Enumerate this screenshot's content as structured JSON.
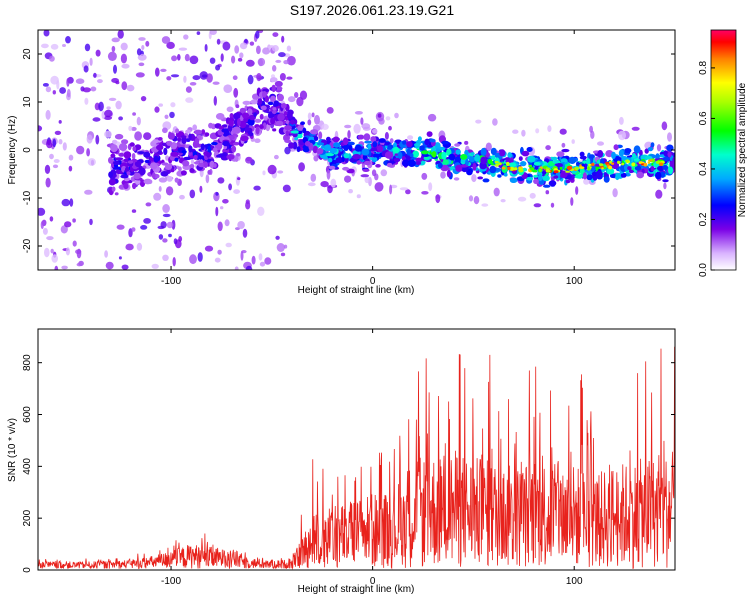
{
  "title": "S197.2026.061.23.19.G21",
  "colors": {
    "snr_line": "#e8221c",
    "axis": "#000000"
  },
  "chart_data": [
    {
      "type": "heatmap",
      "id": "spectrogram",
      "xlabel": "Height of straight line (km)",
      "ylabel": "Frequency (Hz)",
      "xlim": [
        -166,
        150
      ],
      "ylim": [
        -25,
        25
      ],
      "xticks": [
        -100,
        0,
        100
      ],
      "yticks": [
        -20,
        -10,
        0,
        10,
        20
      ],
      "colorbar": {
        "label": "Normalized spectral amplitude",
        "range": [
          0,
          0.95
        ],
        "ticks": [
          0.0,
          0.2,
          0.4,
          0.6,
          0.8
        ],
        "colormap": "rainbow (white→violet→blue→cyan→green→yellow→red→magenta)"
      },
      "ridge_frequency_hz": [
        {
          "x": -120,
          "f": -3.5
        },
        {
          "x": -100,
          "f": -1
        },
        {
          "x": -80,
          "f": 0
        },
        {
          "x": -60,
          "f": 6
        },
        {
          "x": -50,
          "f": 10
        },
        {
          "x": -40,
          "f": 4
        },
        {
          "x": -20,
          "f": -1
        },
        {
          "x": 0,
          "f": -0.5
        },
        {
          "x": 20,
          "f": 0
        },
        {
          "x": 40,
          "f": -2
        },
        {
          "x": 60,
          "f": -3
        },
        {
          "x": 80,
          "f": -4
        },
        {
          "x": 100,
          "f": -4
        },
        {
          "x": 120,
          "f": -3
        },
        {
          "x": 140,
          "f": -2.5
        },
        {
          "x": 150,
          "f": -2.5
        }
      ]
    },
    {
      "type": "line",
      "id": "snr",
      "xlabel": "Height of straight line (km)",
      "ylabel": "SNR (10 * v/v)",
      "xlim": [
        -166,
        150
      ],
      "ylim": [
        0,
        930
      ],
      "xticks": [
        -100,
        0,
        100
      ],
      "yticks": [
        0,
        200,
        400,
        600,
        800
      ],
      "envelope": {
        "x": [
          -166,
          -140,
          -120,
          -110,
          -100,
          -90,
          -80,
          -70,
          -60,
          -50,
          -40,
          -35,
          -30,
          -20,
          -10,
          0,
          10,
          20,
          30,
          40,
          50,
          60,
          70,
          80,
          90,
          100,
          110,
          120,
          130,
          140,
          150
        ],
        "y_max": [
          45,
          45,
          60,
          80,
          110,
          160,
          140,
          120,
          70,
          45,
          60,
          250,
          440,
          380,
          420,
          480,
          450,
          800,
          850,
          900,
          880,
          840,
          780,
          890,
          870,
          820,
          700,
          800,
          860,
          870,
          900
        ],
        "y_typ": [
          20,
          20,
          25,
          35,
          50,
          70,
          60,
          55,
          30,
          25,
          25,
          90,
          150,
          170,
          190,
          210,
          220,
          300,
          320,
          330,
          310,
          300,
          280,
          310,
          300,
          290,
          260,
          290,
          300,
          310,
          320
        ]
      }
    }
  ]
}
